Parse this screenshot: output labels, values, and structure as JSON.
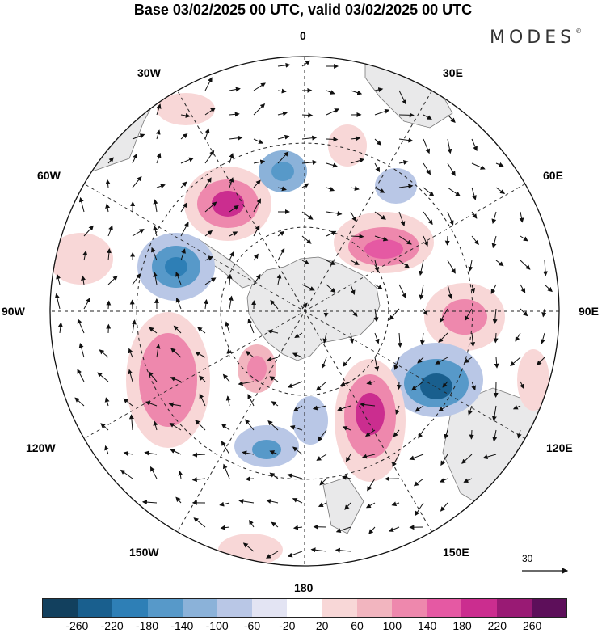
{
  "title": "Base 03/02/2025 00 UTC, valid 03/02/2025 00 UTC",
  "brand": "MODES",
  "brand_mark": "©",
  "longitude_labels": {
    "lon_0": "0",
    "lon_30e": "30E",
    "lon_60e": "60E",
    "lon_90e": "90E",
    "lon_120e": "120E",
    "lon_150e": "150E",
    "lon_180": "180",
    "lon_150w": "150W",
    "lon_120w": "120W",
    "lon_90w": "90W",
    "lon_60w": "60W",
    "lon_30w": "30W"
  },
  "reference_vector_label": "30",
  "colorbar": {
    "colors": [
      "#12405e",
      "#195f8e",
      "#2e7fb6",
      "#5799c9",
      "#8bb2d9",
      "#b9c7e6",
      "#e3e4f3",
      "#ffffff",
      "#f8d7d7",
      "#f2b5bf",
      "#ee88ad",
      "#e559a3",
      "#cb2d8f",
      "#991a74",
      "#5d0f5a"
    ],
    "tick_labels": [
      "-260",
      "-220",
      "-180",
      "-140",
      "-100",
      "-60",
      "-20",
      "20",
      "60",
      "100",
      "140",
      "180",
      "220",
      "260"
    ]
  }
}
